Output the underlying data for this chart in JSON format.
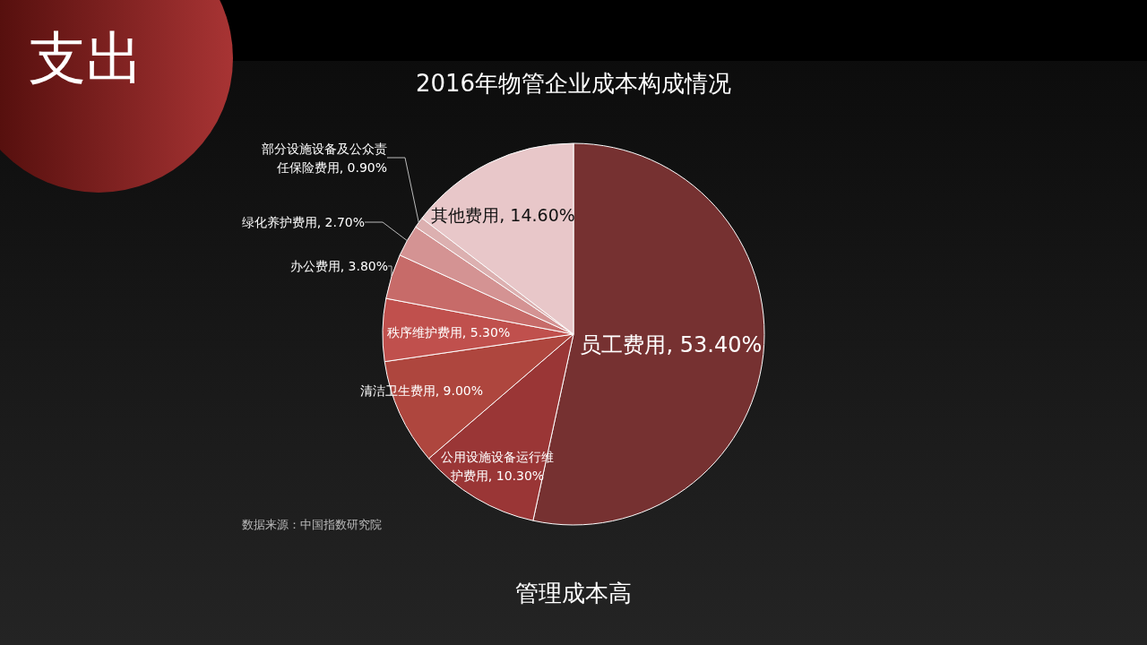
{
  "chart_data": {
    "type": "pie",
    "title": "2016年物管企业成本构成情况",
    "categories": [
      "员工费用",
      "公用设施设备运行维护费用",
      "清洁卫生费用",
      "秩序维护费用",
      "办公费用",
      "绿化养护费用",
      "部分设施设备及公众责任保险费用",
      "其他费用"
    ],
    "values": [
      53.4,
      10.3,
      9.0,
      5.3,
      3.8,
      2.7,
      0.9,
      14.6
    ],
    "value_labels": [
      "53.40%",
      "10.30%",
      "9.00%",
      "5.30%",
      "3.80%",
      "2.70%",
      "0.90%",
      "14.60%"
    ],
    "colors": [
      "#763131",
      "#9a3636",
      "#ae463e",
      "#c0504d",
      "#c76b69",
      "#d49393",
      "#dcb0b0",
      "#e8c7c9"
    ],
    "legend": false,
    "annotations": [
      "支出",
      "数据来源：中国指数研究院",
      "管理成本高"
    ]
  }
}
